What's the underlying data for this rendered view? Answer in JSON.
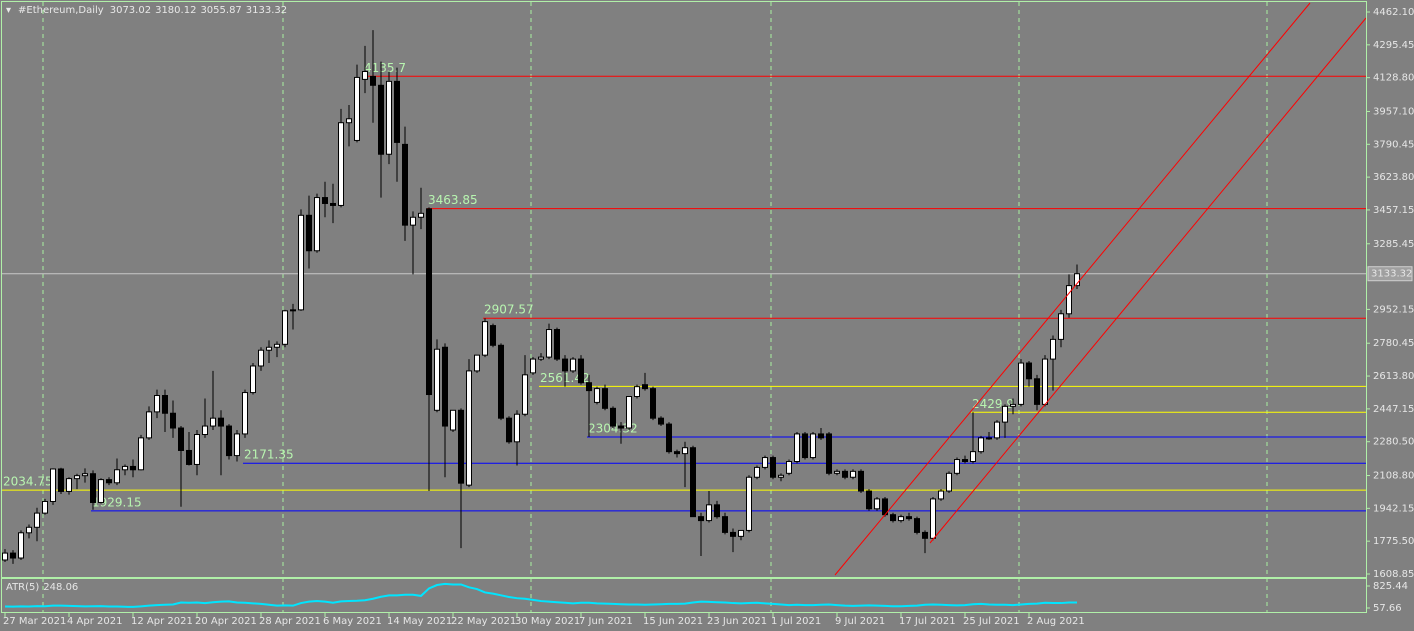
{
  "chart_data": {
    "type": "candlestick",
    "title": "#Ethereum,Daily",
    "categories": [
      "27 Mar 2021",
      null,
      null,
      null,
      null,
      null,
      null,
      null,
      "4 Apr 2021",
      null,
      null,
      null,
      null,
      null,
      null,
      null,
      "12 Apr 2021",
      null,
      null,
      null,
      null,
      null,
      null,
      null,
      "20 Apr 2021",
      null,
      null,
      null,
      null,
      null,
      null,
      null,
      "28 Apr 2021",
      null,
      null,
      null,
      null,
      null,
      null,
      null,
      "6 May 2021",
      null,
      null,
      null,
      null,
      null,
      null,
      null,
      "14 May 2021",
      null,
      null,
      null,
      null,
      null,
      null,
      null,
      "22 May 2021",
      null,
      null,
      null,
      null,
      null,
      null,
      null,
      "30 May 2021",
      null,
      null,
      null,
      null,
      null,
      null,
      null,
      "7 Jun 2021",
      null,
      null,
      null,
      null,
      null,
      null,
      null,
      "15 Jun 2021",
      null,
      null,
      null,
      null,
      null,
      null,
      null,
      "23 Jun 2021",
      null,
      null,
      null,
      null,
      null,
      null,
      null,
      "1 Jul 2021",
      null,
      null,
      null,
      null,
      null,
      null,
      null,
      "9 Jul 2021",
      null,
      null,
      null,
      null,
      null,
      null,
      null,
      "17 Jul 2021",
      null,
      null,
      null,
      null,
      null,
      null,
      null,
      "25 Jul 2021",
      null,
      null,
      null,
      null,
      null,
      null,
      null,
      "2 Aug 2021",
      null,
      null,
      null,
      null,
      null,
      null
    ],
    "open": [
      1680,
      1715,
      1690,
      1818,
      1846,
      1918,
      1977,
      2142,
      2028,
      2093,
      2108,
      2118,
      1972,
      2088,
      2072,
      2138,
      2155,
      2138,
      2300,
      2432,
      2515,
      2425,
      2350,
      2236,
      2165,
      2317,
      2360,
      2400,
      2360,
      2210,
      2320,
      2530,
      2665,
      2745,
      2760,
      2775,
      2945,
      2950,
      3430,
      3250,
      3520,
      3490,
      3480,
      3900,
      3810,
      4120,
      4135,
      4090,
      3740,
      4110,
      3790,
      3380,
      3420,
      3463,
      2440,
      2760,
      2340,
      2440,
      2060,
      2640,
      2720,
      2870,
      2770,
      2400,
      2280,
      2420,
      2630,
      2700,
      2710,
      2850,
      2700,
      2640,
      2700,
      2580,
      2480,
      2550,
      2450,
      2360,
      2350,
      2510,
      2570,
      2550,
      2400,
      2370,
      2230,
      2220,
      2250,
      1900,
      1880,
      1960,
      1900,
      1820,
      1800,
      1830,
      2100,
      2150,
      2200,
      2100,
      2120,
      2180,
      2320,
      2200,
      2320,
      2320,
      2120,
      2130,
      2100,
      2130,
      2030,
      1940,
      1990,
      1910,
      1880,
      1900,
      1890,
      1820,
      1790,
      1990,
      2030,
      2120,
      2190,
      2180,
      2230,
      2300,
      2300,
      2380,
      2460,
      2470,
      2680,
      2600,
      2470,
      2700,
      2800,
      2930,
      3073.02
    ],
    "high": [
      1735,
      1730,
      1830,
      1860,
      1945,
      1990,
      2145,
      2148,
      2100,
      2118,
      2145,
      2135,
      2095,
      2100,
      2195,
      2165,
      2190,
      2315,
      2460,
      2545,
      2545,
      2490,
      2360,
      2330,
      2340,
      2500,
      2640,
      2440,
      2370,
      2340,
      2545,
      2680,
      2760,
      2795,
      2790,
      2950,
      2980,
      3460,
      3530,
      3540,
      3600,
      3590,
      3970,
      3990,
      4195,
      4290,
      4370,
      4210,
      4160,
      4180,
      3880,
      3450,
      3570,
      3470,
      2800,
      2780,
      2440,
      2450,
      2700,
      2720,
      2907.57,
      2880,
      2780,
      2410,
      2440,
      2720,
      2710,
      2730,
      2880,
      2860,
      2720,
      2710,
      2720,
      2620,
      2560,
      2570,
      2460,
      2380,
      2510,
      2570,
      2630,
      2560,
      2410,
      2380,
      2240,
      2280,
      2260,
      1920,
      2030,
      1980,
      1920,
      1840,
      1830,
      2110,
      2160,
      2210,
      2210,
      2120,
      2190,
      2330,
      2330,
      2330,
      2350,
      2330,
      2140,
      2140,
      2140,
      2140,
      2040,
      2000,
      2000,
      1920,
      1910,
      1920,
      1900,
      1830,
      2000,
      2040,
      2130,
      2200,
      2210,
      2429.9,
      2310,
      2330,
      2390,
      2470,
      2500,
      2700,
      2690,
      2620,
      2720,
      2820,
      2950,
      3130,
      3180.12
    ],
    "low": [
      1670,
      1660,
      1680,
      1790,
      1775,
      1910,
      1960,
      2015,
      2012,
      2040,
      2073,
      1935,
      1967,
      2060,
      2060,
      2110,
      2100,
      2135,
      2290,
      2400,
      2330,
      2300,
      1950,
      2160,
      2110,
      2300,
      2340,
      2110,
      2190,
      2180,
      2300,
      2520,
      2640,
      2680,
      2710,
      2760,
      2850,
      2945,
      3160,
      3240,
      3420,
      3390,
      3470,
      3780,
      3800,
      4050,
      3900,
      3520,
      3690,
      3600,
      3300,
      3130,
      3360,
      2030,
      2430,
      2100,
      2330,
      1740,
      2050,
      2630,
      2710,
      2760,
      2390,
      2270,
      2160,
      2410,
      2620,
      2690,
      2700,
      2690,
      2560,
      2630,
      2570,
      2304.32,
      2470,
      2440,
      2350,
      2270,
      2340,
      2500,
      2540,
      2390,
      2360,
      2220,
      2200,
      2050,
      1900,
      1700,
      1870,
      1890,
      1810,
      1720,
      1780,
      1820,
      2090,
      2140,
      2090,
      2080,
      2110,
      2170,
      2190,
      2190,
      2290,
      2110,
      2110,
      2090,
      2090,
      2020,
      1930,
      1930,
      1900,
      1870,
      1870,
      1880,
      1810,
      1715,
      1780,
      1980,
      2020,
      2110,
      2170,
      2170,
      2220,
      2290,
      2290,
      2300,
      2420,
      2460,
      2560,
      2440,
      2460,
      2540,
      2760,
      2910,
      3055.87
    ],
    "close": [
      1715,
      1690,
      1818,
      1846,
      1918,
      1977,
      2142,
      2028,
      2093,
      2108,
      2118,
      1972,
      2088,
      2072,
      2138,
      2155,
      2138,
      2300,
      2432,
      2515,
      2425,
      2350,
      2236,
      2165,
      2317,
      2360,
      2400,
      2360,
      2210,
      2320,
      2530,
      2665,
      2745,
      2760,
      2775,
      2945,
      2950,
      3430,
      3250,
      3520,
      3490,
      3480,
      3900,
      3920,
      4130,
      4160,
      4090,
      3740,
      4110,
      3800,
      3380,
      3420,
      3440,
      2520,
      2750,
      2360,
      2440,
      2070,
      2640,
      2720,
      2890,
      2770,
      2400,
      2280,
      2420,
      2620,
      2700,
      2710,
      2850,
      2700,
      2640,
      2700,
      2580,
      2540,
      2550,
      2450,
      2360,
      2350,
      2510,
      2560,
      2550,
      2400,
      2370,
      2230,
      2220,
      2250,
      1900,
      1880,
      1960,
      1900,
      1820,
      1800,
      1830,
      2100,
      2150,
      2200,
      2100,
      2110,
      2180,
      2320,
      2200,
      2320,
      2300,
      2120,
      2130,
      2100,
      2130,
      2030,
      1940,
      1990,
      1910,
      1880,
      1900,
      1890,
      1820,
      1790,
      1990,
      2030,
      2120,
      2190,
      2180,
      2230,
      2300,
      2300,
      2380,
      2460,
      2470,
      2680,
      2600,
      2470,
      2700,
      2800,
      2930,
      3073,
      3133.32
    ],
    "ylim": [
      1593.6,
      4512.9
    ],
    "yticks": [
      {
        "value": 4462.1,
        "label": "4462.10"
      },
      {
        "value": 4295.45,
        "label": "4295.45"
      },
      {
        "value": 4128.8,
        "label": "4128.80"
      },
      {
        "value": 3957.1,
        "label": "3957.10"
      },
      {
        "value": 3790.45,
        "label": "3790.45"
      },
      {
        "value": 3623.8,
        "label": "3623.80"
      },
      {
        "value": 3457.15,
        "label": "3457.15"
      },
      {
        "value": 3285.45,
        "label": "3285.45"
      },
      {
        "value": 2952.15,
        "label": "2952.15"
      },
      {
        "value": 2780.45,
        "label": "2780.45"
      },
      {
        "value": 2613.8,
        "label": "2613.80"
      },
      {
        "value": 2447.15,
        "label": "2447.15"
      },
      {
        "value": 2280.5,
        "label": "2280.50"
      },
      {
        "value": 2108.8,
        "label": "2108.80"
      },
      {
        "value": 1942.15,
        "label": "1942.15"
      },
      {
        "value": 1775.5,
        "label": "1775.50"
      },
      {
        "value": 1608.85,
        "label": "1608.85"
      }
    ],
    "levels": [
      {
        "value": 4135.7,
        "color": "#ff0000"
      },
      {
        "value": 3463.85,
        "color": "#ff0000"
      },
      {
        "value": 2907.57,
        "color": "#ff0000"
      },
      {
        "value": 2561.42,
        "color": "#ffff00"
      },
      {
        "value": 2429.9,
        "color": "#ffff00"
      },
      {
        "value": 2304.32,
        "color": "#0000ff"
      },
      {
        "value": 2171.35,
        "color": "#0000ff"
      },
      {
        "value": 2034.75,
        "color": "#ffff00"
      },
      {
        "value": 1929.15,
        "color": "#0000ff"
      }
    ],
    "indicator": {
      "name": "ATR(5)",
      "color": "#00e5ff",
      "values": [
        110,
        105,
        115,
        110,
        125,
        120,
        140,
        140,
        130,
        125,
        115,
        120,
        125,
        110,
        110,
        100,
        95,
        115,
        140,
        160,
        170,
        180,
        250,
        240,
        250,
        230,
        260,
        280,
        290,
        250,
        240,
        220,
        200,
        170,
        140,
        150,
        140,
        230,
        280,
        300,
        280,
        240,
        290,
        300,
        310,
        330,
        380,
        450,
        500,
        500,
        520,
        520,
        480,
        740,
        860,
        900,
        880,
        880,
        780,
        720,
        600,
        560,
        500,
        440,
        400,
        380,
        340,
        300,
        280,
        260,
        240,
        220,
        240,
        240,
        220,
        210,
        200,
        190,
        180,
        180,
        170,
        180,
        190,
        200,
        200,
        210,
        250,
        280,
        270,
        260,
        250,
        230,
        220,
        230,
        240,
        220,
        200,
        180,
        160,
        170,
        160,
        160,
        170,
        180,
        160,
        140,
        130,
        140,
        150,
        140,
        130,
        120,
        120,
        130,
        140,
        170,
        180,
        170,
        160,
        150,
        160,
        190,
        200,
        180,
        170,
        170,
        160,
        180,
        200,
        210,
        240,
        230,
        230,
        250,
        248.06
      ],
      "ylim": [
        -82,
        1070
      ],
      "yticks": [
        {
          "value": 825.44,
          "label": "825.44"
        },
        {
          "value": 57.66,
          "label": "57.66"
        }
      ]
    }
  }
}
